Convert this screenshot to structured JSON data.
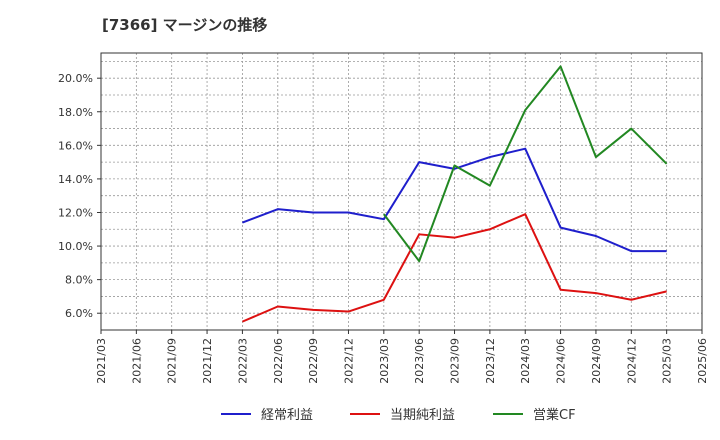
{
  "title": "[7366]  マージンの推移",
  "chart_data": {
    "type": "line",
    "title": "[7366]  マージンの推移",
    "xlabel": "",
    "ylabel": "",
    "ylim": [
      5.0,
      21.5
    ],
    "y_ticks": [
      6.0,
      8.0,
      10.0,
      12.0,
      14.0,
      16.0,
      18.0,
      20.0
    ],
    "y_tick_labels": [
      "6.0%",
      "8.0%",
      "10.0%",
      "12.0%",
      "14.0%",
      "16.0%",
      "18.0%",
      "20.0%"
    ],
    "categories": [
      "2021/03",
      "2021/06",
      "2021/09",
      "2021/12",
      "2022/03",
      "2022/06",
      "2022/09",
      "2022/12",
      "2023/03",
      "2023/06",
      "2023/09",
      "2023/12",
      "2024/03",
      "2024/06",
      "2024/09",
      "2024/12",
      "2025/03",
      "2025/06"
    ],
    "grid": true,
    "legend_position": "bottom",
    "series": [
      {
        "name": "経常利益",
        "color": "#1f1fcc",
        "values": [
          null,
          null,
          null,
          null,
          11.4,
          12.2,
          12.0,
          12.0,
          11.6,
          15.0,
          14.6,
          15.3,
          15.8,
          11.1,
          10.6,
          9.7,
          9.7,
          null
        ]
      },
      {
        "name": "当期純利益",
        "color": "#dd1111",
        "values": [
          null,
          null,
          null,
          null,
          5.5,
          6.4,
          6.2,
          6.1,
          6.8,
          10.7,
          10.5,
          11.0,
          11.9,
          7.4,
          7.2,
          6.8,
          7.3,
          null
        ]
      },
      {
        "name": "営業CF",
        "color": "#228822",
        "values": [
          null,
          null,
          null,
          null,
          null,
          null,
          null,
          null,
          11.9,
          9.1,
          14.8,
          13.6,
          18.1,
          20.7,
          15.3,
          17.0,
          14.9,
          null
        ]
      }
    ]
  }
}
